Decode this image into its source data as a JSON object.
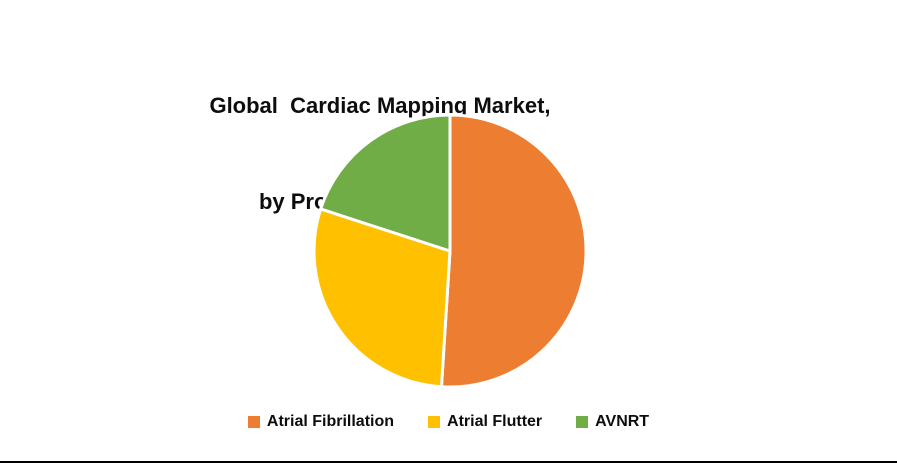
{
  "header": {
    "title_line1": "Global  Cardiac Mapping Market,",
    "title_line2": "by Product  (%) in 2019"
  },
  "chart_data": {
    "type": "pie",
    "title": "Global Cardiac Mapping Market, by Product (%) in 2019",
    "labels": [
      "Atrial Fibrillation",
      "Atrial Flutter",
      "AVNRT"
    ],
    "values": [
      51,
      29,
      20
    ],
    "colors": [
      "#ED7D31",
      "#FFC000",
      "#70AD47"
    ],
    "start_angle_deg": -90,
    "direction": "clockwise",
    "slice_border_color": "#FFFFFF",
    "legend_position": "bottom"
  },
  "legend": {
    "items": [
      {
        "label": "Atrial Fibrillation",
        "color": "#ED7D31"
      },
      {
        "label": "Atrial Flutter",
        "color": "#FFC000"
      },
      {
        "label": "AVNRT",
        "color": "#70AD47"
      }
    ]
  }
}
